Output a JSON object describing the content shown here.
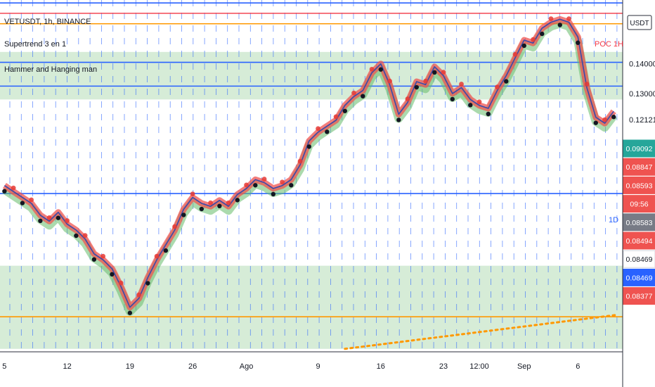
{
  "header": {
    "symbol_line": "VETUSDT, 1h, BINANCE",
    "indicator_1": "Supertrend 3 en 1",
    "indicator_2": "Hammer and Hanging man"
  },
  "price_axis": {
    "currency": "USDT",
    "labels": [
      "0.14000",
      "0.13000",
      "0.12121"
    ]
  },
  "price_tags": [
    {
      "text": "0.09092",
      "bg": "#26a69a",
      "fg": "#ffffff"
    },
    {
      "text": "0.08847",
      "bg": "#ef5350",
      "fg": "#ffffff"
    },
    {
      "text": "0.08593",
      "bg": "#ef5350",
      "fg": "#ffffff"
    },
    {
      "text": "09:56",
      "bg": "#ef5350",
      "fg": "#ffffff"
    },
    {
      "text": "0.08583",
      "bg": "#787b86",
      "fg": "#ffffff"
    },
    {
      "text": "0.08494",
      "bg": "#ef5350",
      "fg": "#ffffff"
    },
    {
      "text": "0.08469",
      "bg": "#ffffff",
      "fg": "#131722"
    },
    {
      "text": "0.08469",
      "bg": "#2962ff",
      "fg": "#ffffff"
    },
    {
      "text": "0.08377",
      "bg": "#ef5350",
      "fg": "#ffffff"
    }
  ],
  "annotations": {
    "poc_label": "POC 1H",
    "day_label": "1D"
  },
  "chart_data": {
    "type": "line",
    "title": "VETUSDT, 1h, BINANCE",
    "x_tick_labels": [
      "5",
      "12",
      "19",
      "26",
      "Ago",
      "9",
      "16",
      "23",
      "12:00",
      "Sep",
      "6"
    ],
    "x_ticks": [
      0,
      7,
      14,
      21,
      27,
      35,
      42,
      49,
      53,
      58,
      64
    ],
    "y_tick_labels": [
      "0.14000",
      "0.13000",
      "0.12121"
    ],
    "y_ticks": [
      0.14,
      0.13,
      0.12121
    ],
    "ylim": [
      0.043,
      0.1615
    ],
    "xlim": [
      -0.5,
      69
    ],
    "horizontal_levels": [
      {
        "price": 0.1605,
        "color": "#2962ff"
      },
      {
        "price": 0.1535,
        "color": "#ff9800"
      },
      {
        "price": 0.1405,
        "color": "#2962ff"
      },
      {
        "price": 0.1325,
        "color": "#2962ff"
      },
      {
        "price": 0.0963,
        "color": "#2962ff"
      },
      {
        "price": 0.0548,
        "color": "#ff9800"
      }
    ],
    "poc_level": {
      "price": 0.157,
      "color": "#f23645"
    },
    "green_zones": [
      [
        0.128,
        0.144
      ],
      [
        0.044,
        0.072
      ]
    ],
    "dotted_trendline": {
      "x": [
        38,
        68.5
      ],
      "y": [
        0.044,
        0.0555
      ],
      "color": "#ff9800"
    },
    "series": [
      {
        "color": "#ef5350",
        "x": [
          0,
          1,
          2,
          3,
          4,
          5,
          6,
          7,
          8,
          9,
          10,
          11,
          12,
          13,
          14,
          15,
          16,
          17,
          18,
          19,
          20,
          21,
          22,
          23,
          24,
          25,
          26,
          27,
          28,
          29,
          30,
          31,
          32,
          33,
          34,
          35,
          36,
          37,
          38,
          39,
          40,
          41,
          42,
          43,
          44,
          45,
          46,
          47,
          48,
          49,
          50,
          51,
          52,
          53,
          54,
          55,
          56,
          57,
          58,
          59,
          60,
          61,
          62,
          63,
          64,
          65,
          66,
          67,
          68
        ],
        "y": [
          0.099,
          0.097,
          0.095,
          0.093,
          0.089,
          0.087,
          0.09,
          0.086,
          0.084,
          0.081,
          0.076,
          0.074,
          0.071,
          0.065,
          0.058,
          0.061,
          0.068,
          0.074,
          0.079,
          0.084,
          0.091,
          0.095,
          0.093,
          0.092,
          0.094,
          0.092,
          0.096,
          0.098,
          0.101,
          0.1,
          0.098,
          0.099,
          0.101,
          0.106,
          0.114,
          0.117,
          0.119,
          0.121,
          0.126,
          0.129,
          0.131,
          0.137,
          0.14,
          0.133,
          0.123,
          0.127,
          0.134,
          0.133,
          0.139,
          0.136,
          0.13,
          0.132,
          0.128,
          0.126,
          0.125,
          0.131,
          0.136,
          0.142,
          0.148,
          0.147,
          0.152,
          0.154,
          0.155,
          0.154,
          0.149,
          0.132,
          0.122,
          0.12,
          0.124
        ]
      }
    ]
  }
}
